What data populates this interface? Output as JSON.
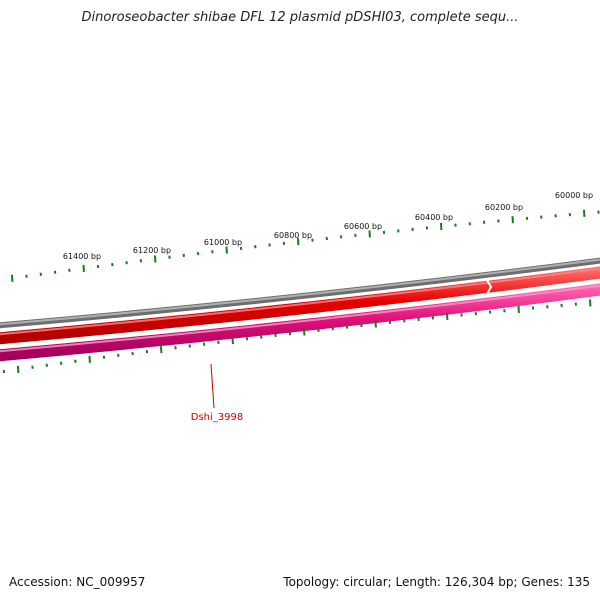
{
  "title": "Dinoroseobacter shibae DFL 12 plasmid pDSHI03, complete sequ...",
  "footer": {
    "accession": "Accession: NC_009957",
    "summary": "Topology: circular; Length: 126,304 bp; Genes: 135"
  },
  "ruler_labels": [
    "61400 bp",
    "61200 bp",
    "61000 bp",
    "60800 bp",
    "60600 bp",
    "60400 bp",
    "60200 bp",
    "60000 bp"
  ],
  "gene_label": "Dshi_3998",
  "colors": {
    "backbone": "#888888",
    "forward_strand": "#e60000",
    "reverse_strand": "#e0107a",
    "major_tick": "#1a7a1a",
    "minor_tick": "#3a9a3a",
    "label_line": "#cc0000"
  }
}
